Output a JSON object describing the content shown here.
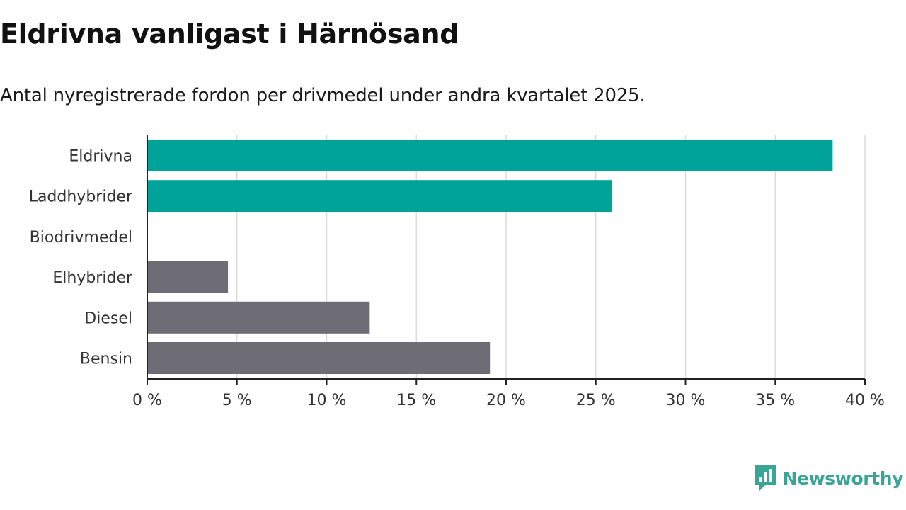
{
  "header": {
    "title": "Eldrivna vanligast i Härnösand",
    "subtitle": "Antal nyregistrerade fordon per drivmedel under andra kvartalet 2025."
  },
  "chart_data": {
    "type": "bar",
    "orientation": "horizontal",
    "categories": [
      "Eldrivna",
      "Laddhybrider",
      "Biodrivmedel",
      "Elhybrider",
      "Diesel",
      "Bensin"
    ],
    "values": [
      38.2,
      25.9,
      0,
      4.5,
      12.4,
      19.1
    ],
    "bar_colors": [
      "#00a39a",
      "#00a39a",
      "#00a39a",
      "#6e6d75",
      "#6e6d75",
      "#6e6d75"
    ],
    "xlim": [
      0,
      40
    ],
    "xticks": [
      0,
      5,
      10,
      15,
      20,
      25,
      30,
      35,
      40
    ],
    "xtick_labels": [
      "0 %",
      "5 %",
      "10 %",
      "15 %",
      "20 %",
      "25 %",
      "30 %",
      "35 %",
      "40 %"
    ],
    "grid": true
  },
  "brand": {
    "name": "Newsworthy",
    "icon": "newsworthy-logo-icon",
    "color": "#3aa596"
  }
}
